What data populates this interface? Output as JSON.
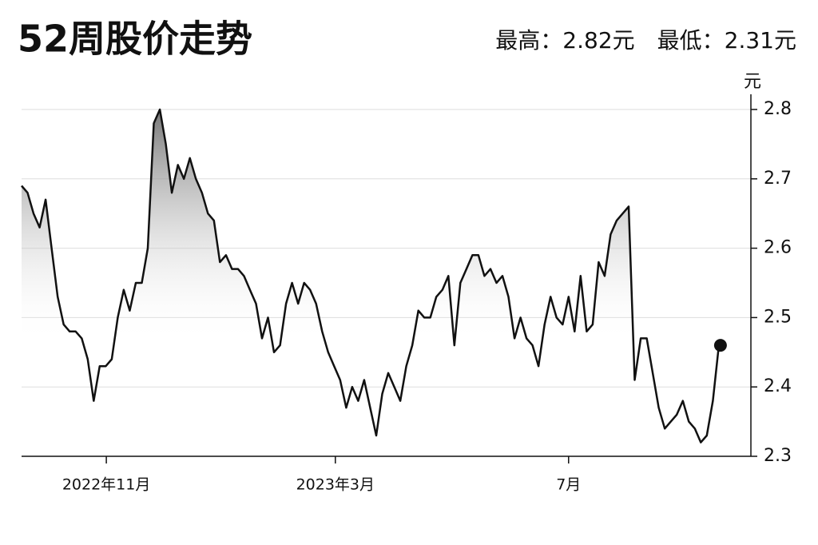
{
  "chart_data": {
    "type": "line",
    "title": "52周股价走势",
    "subtitle": "最高：2.82元　最低：2.31元",
    "y_unit": "元",
    "x": [
      0,
      1,
      2,
      3,
      4,
      5,
      6,
      7,
      8,
      9,
      10,
      11,
      12,
      13,
      14,
      15,
      16,
      17,
      18,
      19,
      20,
      21,
      22,
      23,
      24,
      25,
      26,
      27,
      28,
      29,
      30,
      31,
      32,
      33,
      34,
      35,
      36,
      37,
      38,
      39,
      40,
      41,
      42,
      43,
      44,
      45,
      46,
      47,
      48,
      49,
      50,
      51,
      52,
      53,
      54,
      55,
      56,
      57,
      58,
      59,
      60,
      61,
      62,
      63,
      64,
      65,
      66,
      67,
      68,
      69,
      70,
      71,
      72,
      73,
      74,
      75,
      76,
      77,
      78,
      79,
      80,
      81,
      82,
      83,
      84,
      85,
      86,
      87,
      88,
      89,
      90,
      91,
      92,
      93,
      94,
      95,
      96,
      97,
      98,
      99,
      100,
      101,
      102,
      103,
      104,
      105,
      106,
      107,
      108,
      109,
      110,
      111,
      112,
      113,
      114,
      115,
      116
    ],
    "values": [
      2.69,
      2.68,
      2.65,
      2.63,
      2.67,
      2.6,
      2.53,
      2.49,
      2.48,
      2.48,
      2.47,
      2.44,
      2.38,
      2.43,
      2.43,
      2.44,
      2.5,
      2.54,
      2.51,
      2.55,
      2.55,
      2.6,
      2.78,
      2.8,
      2.75,
      2.68,
      2.72,
      2.7,
      2.73,
      2.7,
      2.68,
      2.65,
      2.64,
      2.58,
      2.59,
      2.57,
      2.57,
      2.56,
      2.54,
      2.52,
      2.47,
      2.5,
      2.45,
      2.46,
      2.52,
      2.55,
      2.52,
      2.55,
      2.54,
      2.52,
      2.48,
      2.45,
      2.43,
      2.41,
      2.37,
      2.4,
      2.38,
      2.41,
      2.37,
      2.33,
      2.39,
      2.42,
      2.4,
      2.38,
      2.43,
      2.46,
      2.51,
      2.5,
      2.5,
      2.53,
      2.54,
      2.56,
      2.46,
      2.55,
      2.57,
      2.59,
      2.59,
      2.56,
      2.57,
      2.55,
      2.56,
      2.53,
      2.47,
      2.5,
      2.47,
      2.46,
      2.43,
      2.49,
      2.53,
      2.5,
      2.49,
      2.53,
      2.48,
      2.56,
      2.48,
      2.49,
      2.58,
      2.56,
      2.62,
      2.64,
      2.65,
      2.66,
      2.41,
      2.47,
      2.47,
      2.42,
      2.37,
      2.34,
      2.35,
      2.36,
      2.38,
      2.35,
      2.34,
      2.32,
      2.33,
      2.38,
      2.46
    ],
    "color": "#111111",
    "xlim": [
      0,
      120
    ],
    "xticks": [
      {
        "value": 14.1,
        "label": "2022年11月"
      },
      {
        "value": 52.2,
        "label": "2023年3月"
      },
      {
        "value": 91,
        "label": "7月"
      }
    ],
    "ylim": [
      2.3,
      2.8
    ],
    "yticks": [
      2.3,
      2.4,
      2.5,
      2.6,
      2.7,
      2.8
    ],
    "grid": true
  }
}
